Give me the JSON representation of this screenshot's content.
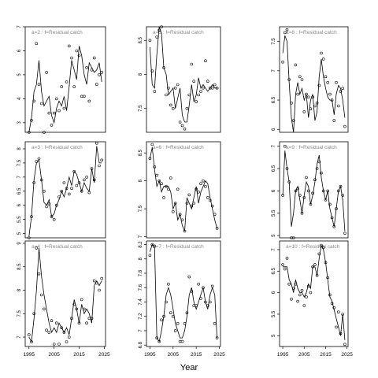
{
  "figure": {
    "xlabel": "Year"
  },
  "chart_data": [
    {
      "type": "line",
      "panel": "a=2",
      "title": "a=2 : f=Residual catch",
      "yticks": [
        3,
        4,
        5,
        6,
        7
      ],
      "ylim": [
        2.6,
        7.0
      ],
      "x": [
        1995,
        1996,
        1997,
        1998,
        1999,
        2000,
        2001,
        2002,
        2003,
        2004,
        2005,
        2006,
        2007,
        2008,
        2009,
        2010,
        2011,
        2012,
        2013,
        2014,
        2015,
        2016,
        2017,
        2018,
        2019,
        2020,
        2021,
        2022,
        2023,
        2024
      ],
      "line": [
        2.6,
        3.2,
        4.3,
        4.6,
        5.6,
        4.3,
        3.7,
        3.9,
        4.1,
        3.3,
        3.0,
        3.6,
        3.9,
        3.7,
        4.1,
        3.5,
        4.5,
        5.6,
        5.2,
        4.8,
        6.2,
        5.8,
        5.0,
        4.6,
        5.5,
        5.3,
        5.1,
        5.2,
        5.5,
        4.7
      ],
      "points": [
        2.6,
        3.1,
        3.9,
        6.3,
        4.6,
        3.8,
        2.6,
        5.1,
        3.4,
        2.9,
        3.4,
        4.0,
        3.5,
        4.5,
        3.6,
        4.7,
        6.2,
        5.7,
        4.5,
        6.0,
        5.8,
        4.1,
        4.1,
        5.3,
        3.9,
        5.2,
        5.7,
        4.6,
        5.0,
        5.1
      ]
    },
    {
      "type": "line",
      "panel": "a=5",
      "title": "a=5 : f=Residual catch",
      "yticks": [
        7.5,
        8.0,
        8.5
      ],
      "ylim": [
        7.15,
        8.7
      ],
      "x": [
        1995,
        1996,
        1997,
        1998,
        1999,
        2000,
        2001,
        2002,
        2003,
        2004,
        2005,
        2006,
        2007,
        2008,
        2009,
        2010,
        2011,
        2012,
        2013,
        2014,
        2015,
        2016,
        2017,
        2018,
        2019,
        2020,
        2021,
        2022,
        2023,
        2024
      ],
      "line": [
        8.4,
        7.85,
        7.8,
        8.3,
        8.7,
        8.6,
        8.1,
        8.0,
        7.7,
        7.75,
        7.8,
        7.5,
        7.65,
        7.8,
        7.4,
        7.3,
        7.3,
        7.55,
        7.85,
        7.6,
        7.7,
        7.95,
        7.8,
        7.85,
        7.8,
        7.75,
        7.8,
        7.85,
        7.8,
        7.8
      ],
      "points": [
        8.5,
        8.05,
        7.75,
        8.55,
        8.65,
        8.7,
        8.1,
        7.7,
        7.8,
        7.55,
        7.5,
        7.8,
        7.85,
        7.3,
        7.25,
        7.2,
        7.5,
        7.7,
        8.15,
        7.9,
        7.6,
        7.7,
        7.75,
        7.8,
        8.2,
        7.9,
        7.8,
        7.8,
        7.85,
        7.8
      ]
    },
    {
      "type": "line",
      "panel": "a=8",
      "title": "a=8 : f=Residual catch",
      "yticks": [
        6.0,
        6.5,
        7.0,
        7.5
      ],
      "ylim": [
        5.95,
        7.75
      ],
      "x": [
        1995,
        1996,
        1997,
        1998,
        1999,
        2000,
        2001,
        2002,
        2003,
        2004,
        2005,
        2006,
        2007,
        2008,
        2009,
        2010,
        2011,
        2012,
        2013,
        2014,
        2015,
        2016,
        2017,
        2018,
        2019,
        2020,
        2021,
        2022,
        2023,
        2024
      ],
      "line": [
        7.3,
        7.6,
        7.5,
        6.8,
        6.2,
        5.95,
        6.6,
        6.8,
        6.6,
        6.7,
        6.5,
        6.6,
        6.2,
        6.5,
        6.6,
        6.15,
        6.3,
        6.9,
        7.2,
        6.9,
        6.7,
        6.55,
        6.5,
        6.5,
        6.25,
        6.6,
        6.75,
        6.7,
        6.5,
        6.2
      ],
      "points": [
        7.15,
        7.65,
        7.7,
        6.85,
        6.45,
        6.15,
        7.1,
        6.6,
        6.9,
        6.85,
        6.3,
        6.6,
        6.55,
        6.35,
        6.55,
        6.4,
        6.45,
        6.75,
        7.3,
        7.2,
        6.9,
        6.8,
        6.6,
        6.5,
        6.15,
        6.8,
        6.4,
        6.65,
        6.7,
        6.05
      ]
    },
    {
      "type": "line",
      "panel": "a=3",
      "title": "a=3 : f=Residual catch",
      "yticks": [
        5.0,
        5.5,
        6.0,
        6.5,
        7.0,
        7.5,
        8.0
      ],
      "ylim": [
        4.85,
        8.25
      ],
      "x": [
        1995,
        1996,
        1997,
        1998,
        1999,
        2000,
        2001,
        2002,
        2003,
        2004,
        2005,
        2006,
        2007,
        2008,
        2009,
        2010,
        2011,
        2012,
        2013,
        2014,
        2015,
        2016,
        2017,
        2018,
        2019,
        2020,
        2021,
        2022,
        2023,
        2024
      ],
      "line": [
        4.9,
        5.6,
        6.9,
        7.5,
        7.6,
        6.9,
        6.1,
        6.0,
        6.2,
        5.6,
        5.7,
        6.0,
        6.2,
        6.5,
        6.3,
        6.6,
        7.0,
        6.7,
        7.2,
        7.1,
        6.8,
        6.5,
        6.8,
        6.6,
        6.5,
        7.3,
        6.8,
        8.1,
        7.5,
        7.5
      ],
      "points": [
        4.85,
        5.6,
        6.8,
        7.55,
        7.65,
        6.9,
        6.5,
        5.95,
        6.05,
        5.6,
        5.5,
        6.0,
        6.3,
        6.5,
        6.8,
        6.6,
        6.4,
        6.6,
        7.2,
        6.7,
        6.8,
        6.5,
        6.9,
        7.0,
        6.45,
        7.3,
        6.9,
        8.2,
        7.4,
        7.6
      ]
    },
    {
      "type": "line",
      "panel": "a=6",
      "title": "a=6 : f=Residual catch",
      "yticks": [
        7.0,
        7.5,
        8.0,
        8.5
      ],
      "ylim": [
        6.98,
        8.7
      ],
      "x": [
        1995,
        1996,
        1997,
        1998,
        1999,
        2000,
        2001,
        2002,
        2003,
        2004,
        2005,
        2006,
        2007,
        2008,
        2009,
        2010,
        2011,
        2012,
        2013,
        2014,
        2015,
        2016,
        2017,
        2018,
        2019,
        2020,
        2021,
        2022,
        2023,
        2024
      ],
      "line": [
        8.4,
        8.6,
        8.2,
        7.9,
        8.0,
        7.8,
        7.9,
        7.9,
        7.9,
        7.8,
        7.5,
        7.6,
        7.3,
        7.4,
        7.2,
        7.1,
        7.7,
        7.6,
        7.5,
        7.7,
        7.9,
        7.6,
        7.8,
        7.9,
        8.0,
        7.95,
        7.7,
        7.5,
        7.3,
        7.15
      ],
      "points": [
        8.4,
        8.65,
        8.25,
        8.1,
        8.0,
        7.95,
        7.7,
        7.9,
        7.85,
        8.05,
        7.45,
        7.6,
        7.85,
        7.4,
        7.3,
        7.1,
        7.6,
        7.75,
        7.55,
        7.6,
        7.85,
        7.8,
        7.95,
        8.0,
        7.9,
        7.7,
        7.65,
        7.55,
        7.4,
        7.15
      ]
    },
    {
      "type": "line",
      "panel": "a=9",
      "title": "a=9 : f=Residual catch",
      "yticks": [
        5.0,
        5.5,
        6.0,
        6.5,
        7.0
      ],
      "ylim": [
        4.95,
        7.1
      ],
      "x": [
        1995,
        1996,
        1997,
        1998,
        1999,
        2000,
        2001,
        2002,
        2003,
        2004,
        2005,
        2006,
        2007,
        2008,
        2009,
        2010,
        2011,
        2012,
        2013,
        2014,
        2015,
        2016,
        2017,
        2018,
        2019,
        2020,
        2021,
        2022,
        2023,
        2024
      ],
      "line": [
        5.9,
        6.9,
        6.5,
        6.2,
        5.2,
        5.5,
        6.0,
        6.1,
        5.8,
        5.5,
        5.9,
        6.2,
        6.1,
        5.7,
        5.9,
        6.2,
        6.6,
        6.8,
        6.3,
        6.0,
        5.8,
        6.0,
        5.6,
        5.4,
        5.2,
        5.6,
        6.0,
        6.1,
        5.8,
        5.1
      ],
      "points": [
        5.9,
        7.0,
        6.5,
        6.2,
        4.95,
        4.95,
        6.0,
        6.05,
        5.9,
        5.5,
        5.85,
        6.3,
        6.0,
        5.7,
        5.95,
        6.25,
        6.5,
        6.65,
        6.4,
        6.0,
        5.8,
        6.0,
        5.7,
        5.4,
        5.2,
        5.6,
        6.0,
        6.1,
        5.9,
        5.05
      ]
    },
    {
      "type": "line",
      "panel": "a=4",
      "title": "a=4 : f=Residual catch",
      "yticks": [
        7.0,
        7.5,
        8.0,
        8.5,
        9.0
      ],
      "ylim": [
        6.8,
        9.05
      ],
      "x": [
        1995,
        1996,
        1997,
        1998,
        1999,
        2000,
        2001,
        2002,
        2003,
        2004,
        2005,
        2006,
        2007,
        2008,
        2009,
        2010,
        2011,
        2012,
        2013,
        2014,
        2015,
        2016,
        2017,
        2018,
        2019,
        2020,
        2021,
        2022,
        2023,
        2024
      ],
      "line": [
        7.0,
        6.9,
        7.4,
        8.0,
        8.9,
        8.3,
        7.9,
        7.6,
        7.3,
        7.1,
        7.2,
        7.1,
        7.3,
        7.2,
        7.1,
        7.2,
        7.05,
        7.4,
        7.8,
        7.6,
        7.3,
        7.7,
        7.5,
        7.6,
        7.5,
        7.3,
        8.1,
        8.2,
        8.1,
        8.2
      ],
      "points": [
        7.05,
        6.9,
        7.5,
        8.9,
        8.35,
        7.9,
        7.6,
        7.15,
        7.1,
        7.35,
        6.85,
        7.3,
        6.85,
        7.2,
        7.1,
        6.9,
        7.0,
        7.4,
        7.7,
        7.6,
        7.3,
        7.8,
        7.6,
        7.3,
        7.4,
        7.4,
        8.2,
        8.15,
        8.0,
        8.25
      ]
    },
    {
      "type": "line",
      "panel": "a=7",
      "title": "a=7 : f=Residual catch",
      "yticks": [
        6.8,
        7.0,
        7.2,
        7.4,
        7.6,
        7.8,
        8.0,
        8.2
      ],
      "ylim": [
        6.78,
        8.25
      ],
      "x": [
        1995,
        1996,
        1997,
        1998,
        1999,
        2000,
        2001,
        2002,
        2003,
        2004,
        2005,
        2006,
        2007,
        2008,
        2009,
        2010,
        2011,
        2012,
        2013,
        2014,
        2015,
        2016,
        2017,
        2018,
        2019,
        2020,
        2021,
        2022,
        2023,
        2024
      ],
      "line": [
        8.1,
        8.2,
        8.15,
        6.9,
        6.85,
        7.0,
        7.2,
        7.5,
        7.6,
        7.5,
        7.3,
        7.1,
        7.0,
        6.9,
        6.9,
        7.0,
        7.2,
        7.5,
        7.6,
        7.4,
        7.3,
        7.4,
        7.5,
        7.6,
        7.4,
        7.3,
        7.5,
        7.6,
        7.5,
        6.9
      ],
      "points": [
        8.05,
        8.2,
        8.18,
        6.9,
        6.85,
        7.15,
        7.2,
        7.4,
        7.65,
        7.25,
        7.2,
        7.0,
        7.1,
        6.85,
        6.85,
        7.1,
        7.25,
        7.75,
        7.55,
        7.35,
        7.35,
        7.65,
        7.45,
        7.6,
        7.4,
        7.35,
        7.4,
        7.62,
        7.1,
        6.9
      ]
    },
    {
      "type": "line",
      "panel": "a=10",
      "title": "a=10 : f=Residual catch",
      "yticks": [
        5.0,
        5.5,
        6.0,
        6.5,
        7.0
      ],
      "ylim": [
        4.75,
        7.2
      ],
      "x": [
        1995,
        1996,
        1997,
        1998,
        1999,
        2000,
        2001,
        2002,
        2003,
        2004,
        2005,
        2006,
        2007,
        2008,
        2009,
        2010,
        2011,
        2012,
        2013,
        2014,
        2015,
        2016,
        2017,
        2018,
        2019,
        2020,
        2021,
        2022,
        2023,
        2024
      ],
      "line": [
        6.6,
        6.6,
        6.6,
        6.3,
        6.2,
        6.0,
        6.3,
        6.1,
        6.0,
        6.0,
        5.9,
        6.0,
        6.2,
        6.1,
        6.6,
        6.6,
        6.4,
        6.8,
        7.1,
        7.0,
        6.7,
        6.3,
        5.9,
        5.8,
        5.6,
        5.4,
        5.2,
        5.0,
        5.5,
        4.9
      ],
      "points": [
        6.65,
        6.55,
        6.8,
        6.2,
        5.85,
        6.1,
        6.2,
        5.8,
        5.95,
        6.05,
        5.7,
        5.9,
        6.15,
        6.0,
        6.6,
        6.65,
        6.4,
        6.9,
        7.1,
        7.05,
        6.7,
        6.35,
        5.95,
        5.75,
        5.65,
        5.2,
        5.55,
        5.05,
        5.5,
        4.8
      ]
    }
  ]
}
